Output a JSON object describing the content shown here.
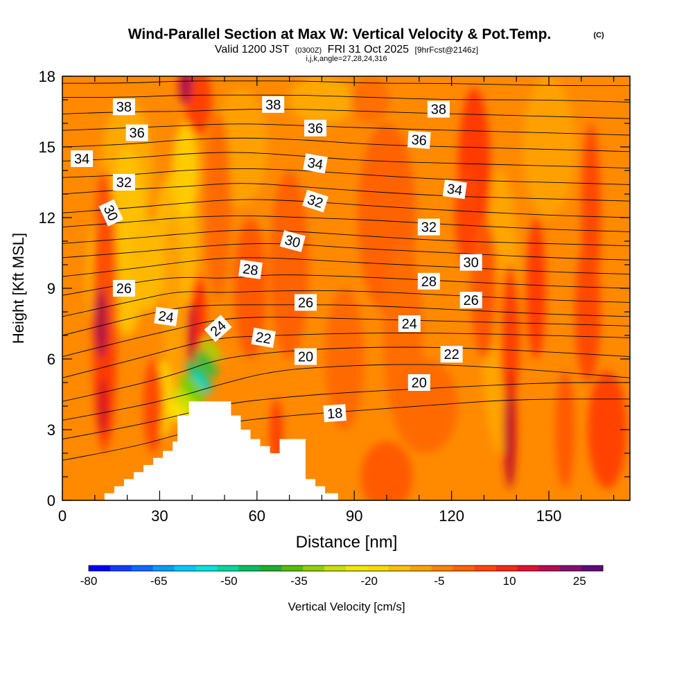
{
  "title": {
    "main": "Wind-Parallel Section at Max W: Vertical Velocity & Pot.Temp.",
    "copyright": "(C)",
    "valid_prefix": "Valid 1200 JST",
    "valid_utc": "(0300Z)",
    "valid_date": "FRI 31 Oct 2025",
    "forecast": "[9hrFcst@2146z]",
    "indices": "i,j,k,angle=27,28,24,316"
  },
  "chart_data": {
    "type": "contour-cross-section",
    "xlabel": "Distance [nm]",
    "ylabel": "Height [Kft MSL]",
    "xlim": [
      0,
      175
    ],
    "ylim": [
      0,
      18
    ],
    "x_ticks": [
      0,
      30,
      60,
      90,
      120,
      150
    ],
    "y_ticks": [
      0,
      3,
      6,
      9,
      12,
      15,
      18
    ],
    "terrain": {
      "x": [
        0,
        13,
        13,
        16,
        16,
        19,
        19,
        22,
        22,
        25,
        25,
        28,
        28,
        31,
        31,
        34,
        34,
        35.5,
        35.5,
        39,
        39,
        52,
        52,
        55,
        55,
        58,
        58,
        61,
        61,
        64,
        64,
        67,
        67,
        75,
        75,
        78,
        78,
        81,
        81,
        85,
        85,
        175
      ],
      "y": [
        0,
        0,
        0.3,
        0.3,
        0.6,
        0.6,
        0.9,
        0.9,
        1.2,
        1.2,
        1.5,
        1.5,
        1.8,
        1.8,
        2.1,
        2.1,
        2.5,
        2.5,
        3.6,
        3.6,
        4.2,
        4.2,
        3.6,
        3.6,
        3.0,
        3.0,
        2.6,
        2.6,
        2.3,
        2.3,
        2.0,
        2.0,
        2.6,
        2.6,
        0.9,
        0.9,
        0.6,
        0.6,
        0.3,
        0.3,
        0,
        0
      ]
    },
    "theta_contours": [
      {
        "level": 18,
        "label": "18",
        "pts": [
          [
            0,
            1.7
          ],
          [
            20,
            2.2
          ],
          [
            36,
            2.8
          ],
          [
            50,
            3.3
          ],
          [
            70,
            3.6
          ],
          [
            90,
            3.8
          ],
          [
            110,
            4.0
          ],
          [
            140,
            4.3
          ],
          [
            175,
            4.3
          ]
        ]
      },
      {
        "level": 19,
        "label": "",
        "pts": [
          [
            0,
            2.6
          ],
          [
            20,
            3.1
          ],
          [
            36,
            3.6
          ],
          [
            50,
            4.1
          ],
          [
            70,
            4.4
          ],
          [
            90,
            4.6
          ],
          [
            120,
            4.8
          ],
          [
            150,
            5.0
          ],
          [
            175,
            5.0
          ]
        ]
      },
      {
        "level": 20,
        "label": "20",
        "pts": [
          [
            0,
            3.4
          ],
          [
            20,
            3.9
          ],
          [
            36,
            4.4
          ],
          [
            48,
            4.9
          ],
          [
            65,
            5.5
          ],
          [
            85,
            5.7
          ],
          [
            110,
            5.8
          ],
          [
            140,
            5.6
          ],
          [
            175,
            5.2
          ]
        ]
      },
      {
        "level": 21,
        "label": "",
        "pts": [
          [
            0,
            4.2
          ],
          [
            20,
            4.8
          ],
          [
            36,
            5.4
          ],
          [
            48,
            6.0
          ],
          [
            65,
            6.3
          ],
          [
            90,
            6.5
          ],
          [
            120,
            6.5
          ],
          [
            150,
            6.3
          ],
          [
            175,
            6.1
          ]
        ]
      },
      {
        "level": 22,
        "label": "22",
        "pts": [
          [
            0,
            5.2
          ],
          [
            20,
            5.9
          ],
          [
            36,
            6.5
          ],
          [
            48,
            6.9
          ],
          [
            65,
            7.0
          ],
          [
            90,
            7.1
          ],
          [
            120,
            7.1
          ],
          [
            150,
            7.0
          ],
          [
            175,
            6.9
          ]
        ]
      },
      {
        "level": 23,
        "label": "",
        "pts": [
          [
            0,
            6.1
          ],
          [
            20,
            6.8
          ],
          [
            36,
            7.3
          ],
          [
            48,
            7.7
          ],
          [
            65,
            7.8
          ],
          [
            90,
            7.7
          ],
          [
            120,
            7.6
          ],
          [
            150,
            7.5
          ],
          [
            175,
            7.4
          ]
        ]
      },
      {
        "level": 24,
        "label": "24",
        "pts": [
          [
            0,
            7.0
          ],
          [
            20,
            7.7
          ],
          [
            36,
            8.2
          ],
          [
            48,
            8.3
          ],
          [
            65,
            8.3
          ],
          [
            90,
            8.3
          ],
          [
            120,
            8.1
          ],
          [
            150,
            7.9
          ],
          [
            175,
            7.8
          ]
        ]
      },
      {
        "level": 25,
        "label": "",
        "pts": [
          [
            0,
            7.8
          ],
          [
            20,
            8.4
          ],
          [
            36,
            8.9
          ],
          [
            48,
            8.8
          ],
          [
            65,
            8.9
          ],
          [
            90,
            8.9
          ],
          [
            120,
            8.7
          ],
          [
            150,
            8.5
          ],
          [
            175,
            8.4
          ]
        ]
      },
      {
        "level": 26,
        "label": "26",
        "pts": [
          [
            0,
            8.7
          ],
          [
            20,
            9.2
          ],
          [
            36,
            9.5
          ],
          [
            50,
            9.4
          ],
          [
            65,
            9.6
          ],
          [
            90,
            9.5
          ],
          [
            120,
            9.3
          ],
          [
            150,
            9.1
          ],
          [
            175,
            9.0
          ]
        ]
      },
      {
        "level": 27,
        "label": "",
        "pts": [
          [
            0,
            9.5
          ],
          [
            20,
            9.8
          ],
          [
            36,
            10.1
          ],
          [
            50,
            10.3
          ],
          [
            65,
            10.3
          ],
          [
            90,
            10.1
          ],
          [
            120,
            9.9
          ],
          [
            150,
            9.7
          ],
          [
            175,
            9.6
          ]
        ]
      },
      {
        "level": 28,
        "label": "28",
        "pts": [
          [
            0,
            10.3
          ],
          [
            20,
            10.5
          ],
          [
            36,
            10.7
          ],
          [
            55,
            10.9
          ],
          [
            70,
            10.9
          ],
          [
            90,
            10.7
          ],
          [
            120,
            10.5
          ],
          [
            150,
            10.3
          ],
          [
            175,
            10.2
          ]
        ]
      },
      {
        "level": 29,
        "label": "",
        "pts": [
          [
            0,
            10.9
          ],
          [
            20,
            11.1
          ],
          [
            36,
            11.3
          ],
          [
            55,
            11.5
          ],
          [
            75,
            11.4
          ],
          [
            95,
            11.2
          ],
          [
            120,
            11.0
          ],
          [
            150,
            10.9
          ],
          [
            175,
            10.8
          ]
        ]
      },
      {
        "level": 30,
        "label": "30",
        "pts": [
          [
            0,
            11.6
          ],
          [
            20,
            11.8
          ],
          [
            36,
            12.0
          ],
          [
            55,
            12.1
          ],
          [
            75,
            12.0
          ],
          [
            95,
            11.9
          ],
          [
            120,
            11.7
          ],
          [
            150,
            11.5
          ],
          [
            175,
            11.4
          ]
        ]
      },
      {
        "level": 31,
        "label": "",
        "pts": [
          [
            0,
            12.2
          ],
          [
            20,
            12.4
          ],
          [
            36,
            12.6
          ],
          [
            55,
            12.8
          ],
          [
            75,
            12.7
          ],
          [
            95,
            12.5
          ],
          [
            120,
            12.3
          ],
          [
            150,
            12.1
          ],
          [
            175,
            12.0
          ]
        ]
      },
      {
        "level": 32,
        "label": "32",
        "pts": [
          [
            0,
            13.0
          ],
          [
            20,
            13.2
          ],
          [
            36,
            13.3
          ],
          [
            55,
            13.5
          ],
          [
            75,
            13.3
          ],
          [
            95,
            13.1
          ],
          [
            120,
            12.9
          ],
          [
            150,
            12.8
          ],
          [
            175,
            12.7
          ]
        ]
      },
      {
        "level": 33,
        "label": "",
        "pts": [
          [
            0,
            13.7
          ],
          [
            20,
            13.8
          ],
          [
            36,
            14.0
          ],
          [
            55,
            14.1
          ],
          [
            75,
            14.0
          ],
          [
            95,
            13.8
          ],
          [
            120,
            13.6
          ],
          [
            150,
            13.5
          ],
          [
            175,
            13.4
          ]
        ]
      },
      {
        "level": 34,
        "label": "34",
        "pts": [
          [
            0,
            14.4
          ],
          [
            20,
            14.5
          ],
          [
            36,
            14.7
          ],
          [
            55,
            14.8
          ],
          [
            75,
            14.6
          ],
          [
            95,
            14.4
          ],
          [
            120,
            14.3
          ],
          [
            150,
            14.2
          ],
          [
            175,
            14.1
          ]
        ]
      },
      {
        "level": 35,
        "label": "",
        "pts": [
          [
            0,
            15.0
          ],
          [
            20,
            15.1
          ],
          [
            36,
            15.3
          ],
          [
            55,
            15.4
          ],
          [
            75,
            15.3
          ],
          [
            95,
            15.1
          ],
          [
            120,
            15.0
          ],
          [
            150,
            14.9
          ],
          [
            175,
            14.8
          ]
        ]
      },
      {
        "level": 36,
        "label": "36",
        "pts": [
          [
            0,
            15.7
          ],
          [
            20,
            15.8
          ],
          [
            36,
            15.9
          ],
          [
            55,
            16.0
          ],
          [
            75,
            15.9
          ],
          [
            95,
            15.8
          ],
          [
            120,
            15.7
          ],
          [
            150,
            15.6
          ],
          [
            175,
            15.5
          ]
        ]
      },
      {
        "level": 37,
        "label": "",
        "pts": [
          [
            0,
            16.4
          ],
          [
            20,
            16.5
          ],
          [
            36,
            16.5
          ],
          [
            55,
            16.6
          ],
          [
            75,
            16.6
          ],
          [
            95,
            16.5
          ],
          [
            120,
            16.4
          ],
          [
            150,
            16.3
          ],
          [
            175,
            16.2
          ]
        ]
      },
      {
        "level": 38,
        "label": "38",
        "pts": [
          [
            0,
            17.1
          ],
          [
            20,
            17.1
          ],
          [
            36,
            17.2
          ],
          [
            55,
            17.2
          ],
          [
            75,
            17.2
          ],
          [
            95,
            17.1
          ],
          [
            120,
            17.0
          ],
          [
            150,
            17.0
          ],
          [
            175,
            16.9
          ]
        ]
      },
      {
        "level": 39,
        "label": "",
        "pts": [
          [
            0,
            17.7
          ],
          [
            20,
            17.7
          ],
          [
            36,
            17.8
          ],
          [
            55,
            17.8
          ],
          [
            75,
            17.8
          ],
          [
            95,
            17.7
          ],
          [
            120,
            17.7
          ],
          [
            150,
            17.6
          ],
          [
            175,
            17.6
          ]
        ]
      }
    ],
    "contour_labels": [
      {
        "text": "38",
        "x": 19,
        "y": 16.7,
        "rot": 0
      },
      {
        "text": "36",
        "x": 23,
        "y": 15.6,
        "rot": 0
      },
      {
        "text": "34",
        "x": 6,
        "y": 14.5,
        "rot": 0
      },
      {
        "text": "32",
        "x": 19,
        "y": 13.5,
        "rot": 0
      },
      {
        "text": "30",
        "x": 15,
        "y": 12.2,
        "rot": 65
      },
      {
        "text": "26",
        "x": 19,
        "y": 9.0,
        "rot": 0
      },
      {
        "text": "24",
        "x": 32,
        "y": 7.8,
        "rot": 8
      },
      {
        "text": "24",
        "x": 48,
        "y": 7.3,
        "rot": -42
      },
      {
        "text": "28",
        "x": 58,
        "y": 9.8,
        "rot": 8
      },
      {
        "text": "22",
        "x": 62,
        "y": 6.9,
        "rot": 10
      },
      {
        "text": "38",
        "x": 65,
        "y": 16.8,
        "rot": 0
      },
      {
        "text": "36",
        "x": 78,
        "y": 15.8,
        "rot": 0
      },
      {
        "text": "34",
        "x": 78,
        "y": 14.3,
        "rot": 10
      },
      {
        "text": "32",
        "x": 78,
        "y": 12.7,
        "rot": 18
      },
      {
        "text": "30",
        "x": 71,
        "y": 11.0,
        "rot": 15
      },
      {
        "text": "26",
        "x": 75,
        "y": 8.4,
        "rot": 0
      },
      {
        "text": "20",
        "x": 75,
        "y": 6.1,
        "rot": 0
      },
      {
        "text": "18",
        "x": 84,
        "y": 3.7,
        "rot": -4
      },
      {
        "text": "38",
        "x": 116,
        "y": 16.6,
        "rot": 0
      },
      {
        "text": "36",
        "x": 110,
        "y": 15.3,
        "rot": 4
      },
      {
        "text": "34",
        "x": 121,
        "y": 13.2,
        "rot": 8
      },
      {
        "text": "32",
        "x": 113,
        "y": 11.6,
        "rot": 0
      },
      {
        "text": "30",
        "x": 126,
        "y": 10.1,
        "rot": 0
      },
      {
        "text": "28",
        "x": 113,
        "y": 9.3,
        "rot": 0
      },
      {
        "text": "26",
        "x": 126,
        "y": 8.5,
        "rot": 0
      },
      {
        "text": "24",
        "x": 107,
        "y": 7.5,
        "rot": 0
      },
      {
        "text": "22",
        "x": 120,
        "y": 6.2,
        "rot": 0
      },
      {
        "text": "20",
        "x": 110,
        "y": 5.0,
        "rot": 0
      }
    ],
    "colorbar": {
      "label": "Vertical Velocity [cm/s]",
      "tick_labels": [
        "-80",
        "-65",
        "-50",
        "-35",
        "-20",
        "-5",
        "10",
        "25"
      ],
      "tick_values": [
        -80,
        -65,
        -50,
        -35,
        -20,
        -5,
        10,
        25
      ],
      "min": -80,
      "max": 30,
      "colors": [
        "#0000ff",
        "#0b3fff",
        "#0a6cff",
        "#0a9bff",
        "#00c8ff",
        "#00e3e0",
        "#00d8a0",
        "#00c060",
        "#17b22a",
        "#52c000",
        "#8fd200",
        "#c9e000",
        "#f0e800",
        "#ffd800",
        "#ffbe00",
        "#ffa000",
        "#ff8200",
        "#ff6400",
        "#ff4600",
        "#f02c10",
        "#dd1230",
        "#b50c50",
        "#8a0a6e",
        "#60087e"
      ]
    },
    "field_notes": "Background mostly orange (-5 to 0 cm/s) with red updraft columns near 13, 37, 130, 138, 160 nm and a green/cyan downdraft along the windward ridge slope near 36-46 nm at 3-6 kft."
  }
}
